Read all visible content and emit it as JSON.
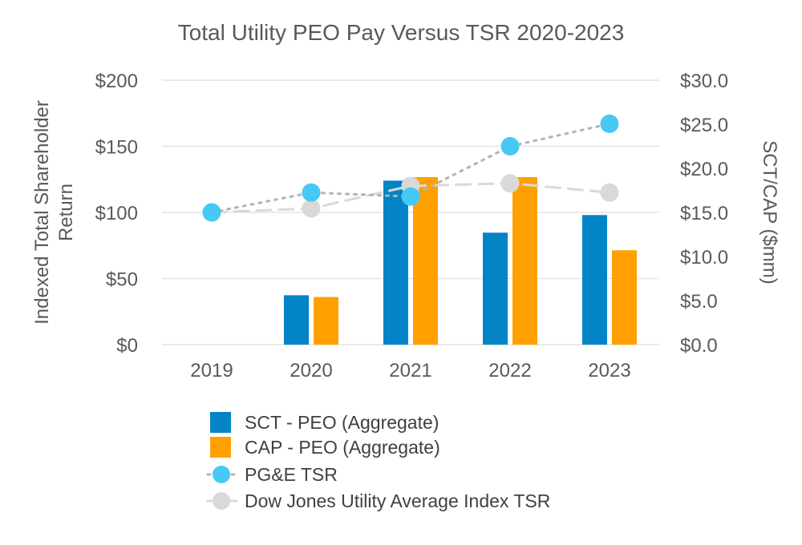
{
  "chart_data": {
    "type": "bar",
    "title": "Total Utility PEO Pay Versus TSR 2020-2023",
    "categories": [
      "2019",
      "2020",
      "2021",
      "2022",
      "2023"
    ],
    "ylabel_left_lines": [
      "Indexed Total Shareholder",
      "Return"
    ],
    "ylabel_right": "SCT/CAP ($mm)",
    "ylim_left": [
      0,
      200
    ],
    "ylim_right": [
      0,
      30
    ],
    "yticks_left": [
      "$0",
      "$50",
      "$100",
      "$150",
      "$200"
    ],
    "yticks_right": [
      "$0.0",
      "$5.0",
      "$10.0",
      "$15.0",
      "$20.0",
      "$25.0",
      "$30.0"
    ],
    "grid": true,
    "legend_position": "bottom",
    "series": [
      {
        "name": "SCT - PEO (Aggregate)",
        "kind": "bar",
        "axis": "right",
        "color": "#0284c7",
        "values": [
          null,
          5.6,
          18.6,
          12.7,
          14.7
        ]
      },
      {
        "name": "CAP - PEO (Aggregate)",
        "kind": "bar",
        "axis": "right",
        "color": "#ffa000",
        "values": [
          null,
          5.4,
          19.0,
          19.0,
          10.7
        ]
      },
      {
        "name": "PG&E TSR",
        "kind": "line",
        "axis": "left",
        "color": "#47c8f5",
        "line_color": "#b3b3b3",
        "line_style": "dotted",
        "values": [
          100,
          115,
          112,
          150,
          167
        ]
      },
      {
        "name": "Dow Jones Utility Average Index TSR",
        "kind": "line",
        "axis": "left",
        "color": "#d9d9d9",
        "line_color": "#d9d9d9",
        "line_style": "dashed",
        "values": [
          100,
          103,
          120,
          122,
          115
        ]
      }
    ]
  }
}
